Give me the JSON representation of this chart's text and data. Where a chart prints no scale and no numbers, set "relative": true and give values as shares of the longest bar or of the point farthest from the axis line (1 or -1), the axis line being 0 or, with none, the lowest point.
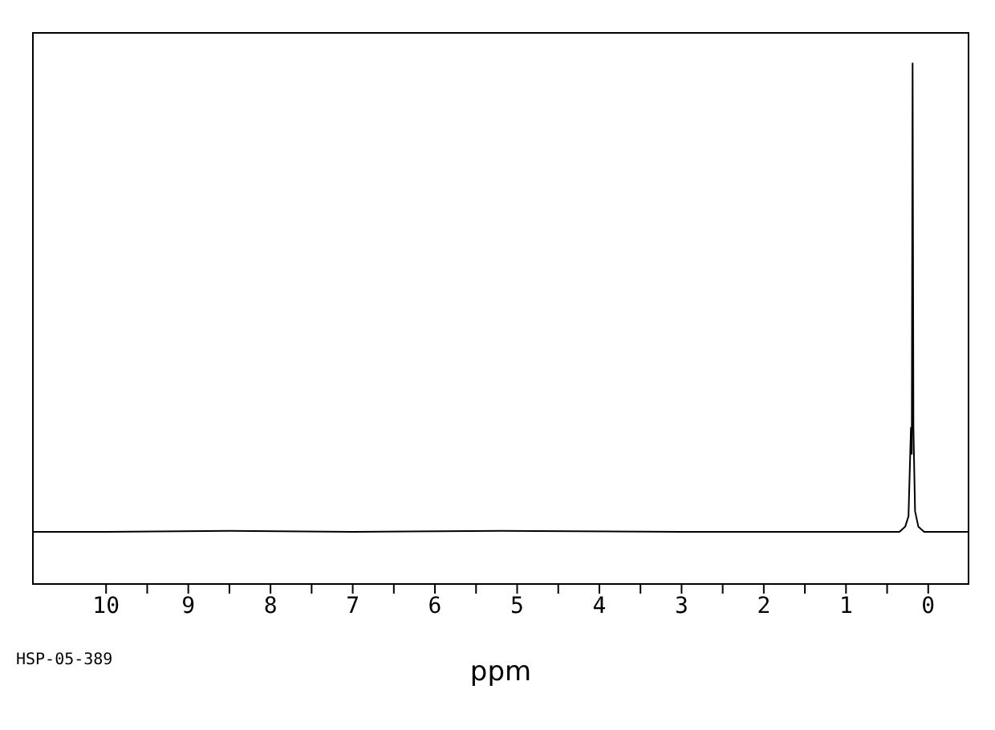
{
  "chart_data": {
    "type": "line",
    "relative": true,
    "xlabel": "ppm",
    "annotations": [
      "HSP-05-389"
    ],
    "color": "#000000",
    "marker": "none",
    "x": [
      10.9,
      10.0,
      8.5,
      7.0,
      5.2,
      3.0,
      1.0,
      0.5,
      0.35,
      0.28,
      0.24,
      0.21,
      0.2,
      0.19,
      0.18,
      0.16,
      0.12,
      0.05,
      -0.5
    ],
    "values": [
      0.1,
      0.1,
      0.102,
      0.1,
      0.102,
      0.1,
      0.1,
      0.1,
      0.1,
      0.11,
      0.13,
      0.3,
      0.25,
      1.0,
      0.3,
      0.14,
      0.11,
      0.1,
      0.1
    ],
    "xlim": [
      10.9,
      -0.5
    ],
    "xticks": [
      10,
      {
        "value": 9.5,
        "label": null
      },
      9,
      {
        "value": 8.5,
        "label": null
      },
      8,
      {
        "value": 7.5,
        "label": null
      },
      7,
      {
        "value": 6.5,
        "label": null
      },
      6,
      {
        "value": 5.5,
        "label": null
      },
      5,
      {
        "value": 4.5,
        "label": null
      },
      4,
      {
        "value": 3.5,
        "label": null
      },
      3,
      {
        "value": 2.5,
        "label": null
      },
      2,
      {
        "value": 1.5,
        "label": null
      },
      1,
      {
        "value": 0.5,
        "label": null
      },
      0
    ]
  }
}
